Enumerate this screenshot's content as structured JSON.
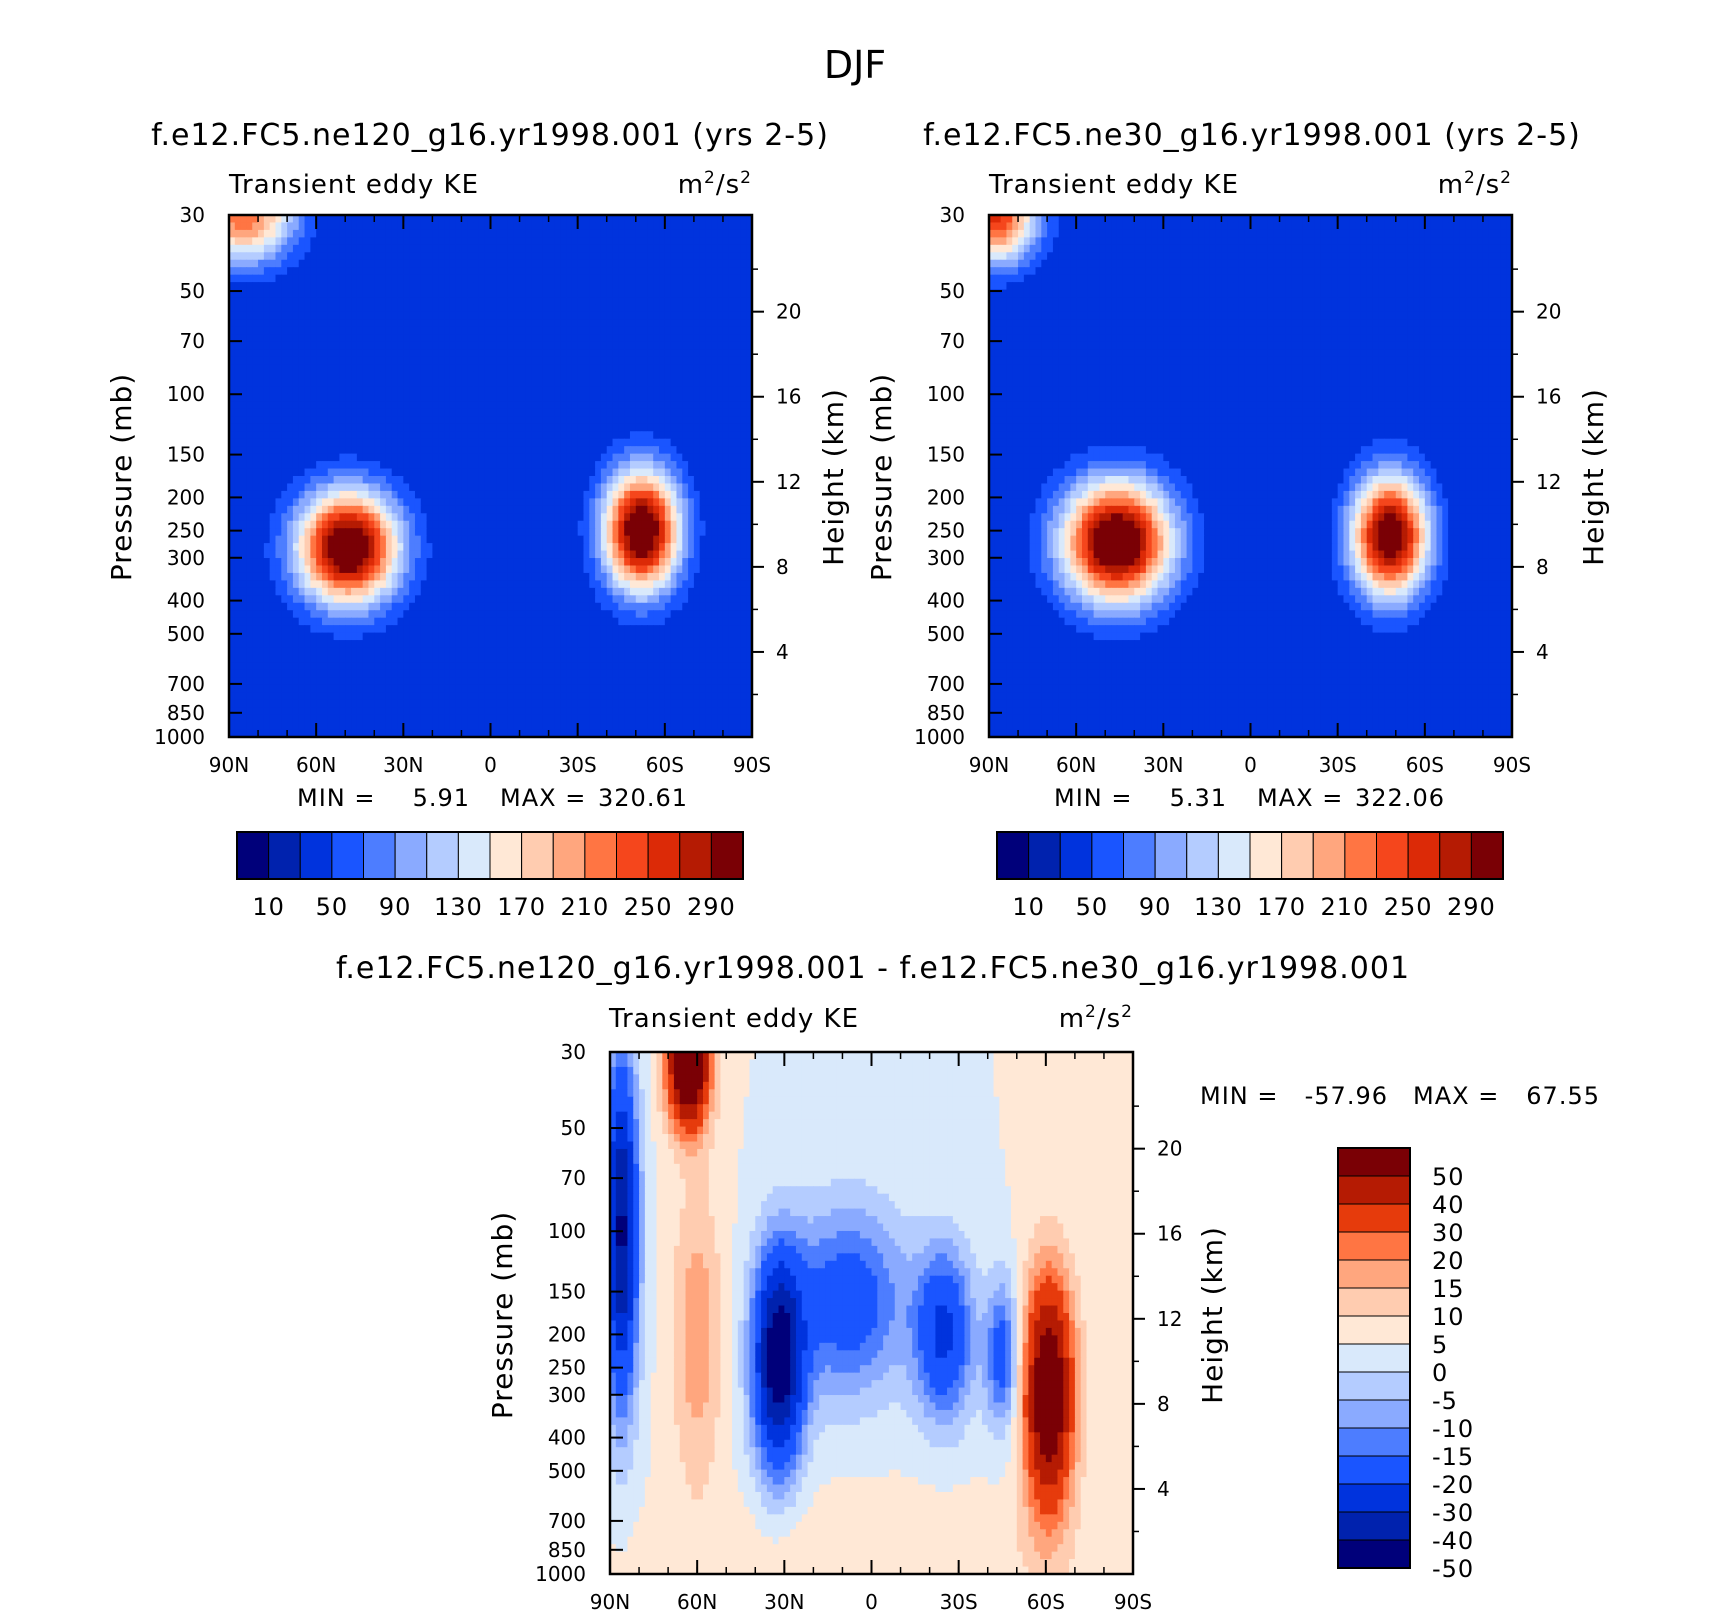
{
  "figure_title": "DJF",
  "colors": {
    "abs_scale": [
      "#00007a",
      "#0022ae",
      "#0033dd",
      "#1a55ff",
      "#4d7dff",
      "#8aaaff",
      "#b4ccff",
      "#d9e9fb",
      "#ffe8d6",
      "#ffccb0",
      "#ffa67e",
      "#ff7543",
      "#f5461c",
      "#dc2a07",
      "#b51b03",
      "#7a0005"
    ],
    "diff_scale": [
      "#00007a",
      "#0022ae",
      "#0033dd",
      "#1a55ff",
      "#4d7dff",
      "#8aaaff",
      "#b4ccff",
      "#d9e9fb",
      "#ffe8d6",
      "#ffccb0",
      "#ffa67e",
      "#ff7543",
      "#e63b0c",
      "#b51b03",
      "#7a0005"
    ]
  },
  "chart_data": [
    {
      "type": "heatmap",
      "title": "f.e12.FC5.ne120_g16.yr1998.001 (yrs 2-5)",
      "left_label": "Transient eddy KE",
      "units_base": "m",
      "units_mid": "/s",
      "units_exp": "2",
      "ylabel": "Pressure (mb)",
      "ylabel2": "Height (km)",
      "x_ticks": [
        "90N",
        "60N",
        "30N",
        "0",
        "30S",
        "60S",
        "90S"
      ],
      "y_ticks": [
        "30",
        "50",
        "70",
        "100",
        "150",
        "200",
        "250",
        "300",
        "400",
        "500",
        "700",
        "850",
        "1000"
      ],
      "y2_ticks": [
        "20",
        "16",
        "12",
        "8",
        "4"
      ],
      "min_label": "MIN =",
      "min_value": "5.91",
      "max_label": "MAX =",
      "max_value": "320.61",
      "colorbar_labels": [
        "10",
        "50",
        "90",
        "130",
        "170",
        "210",
        "250",
        "290"
      ],
      "levels": [
        10,
        30,
        50,
        70,
        90,
        110,
        130,
        150,
        170,
        190,
        210,
        230,
        250,
        270,
        290
      ],
      "features": [
        {
          "lat": 49,
          "p": 280,
          "amp": 310,
          "slat": 12,
          "sz": 0.26
        },
        {
          "lat": -52,
          "p": 250,
          "amp": 310,
          "slat": 9,
          "sz": 0.28
        },
        {
          "lat": 85,
          "p": 30,
          "amp": 200,
          "slat": 12,
          "sz": 0.22
        }
      ]
    },
    {
      "type": "heatmap",
      "title": "f.e12.FC5.ne30_g16.yr1998.001 (yrs 2-5)",
      "left_label": "Transient eddy KE",
      "units_base": "m",
      "units_mid": "/s",
      "units_exp": "2",
      "ylabel": "Pressure (mb)",
      "ylabel2": "Height (km)",
      "x_ticks": [
        "90N",
        "60N",
        "30N",
        "0",
        "30S",
        "60S",
        "90S"
      ],
      "y_ticks": [
        "30",
        "50",
        "70",
        "100",
        "150",
        "200",
        "250",
        "300",
        "400",
        "500",
        "700",
        "850",
        "1000"
      ],
      "y2_ticks": [
        "20",
        "16",
        "12",
        "8",
        "4"
      ],
      "min_label": "MIN =",
      "min_value": "5.31",
      "max_label": "MAX =",
      "max_value": "322.06",
      "colorbar_labels": [
        "10",
        "50",
        "90",
        "130",
        "170",
        "210",
        "250",
        "290"
      ],
      "levels": [
        10,
        30,
        50,
        70,
        90,
        110,
        130,
        150,
        170,
        190,
        210,
        230,
        250,
        270,
        290
      ],
      "features": [
        {
          "lat": 46,
          "p": 270,
          "amp": 315,
          "slat": 13,
          "sz": 0.28
        },
        {
          "lat": -48,
          "p": 260,
          "amp": 300,
          "slat": 9,
          "sz": 0.28
        },
        {
          "lat": 88,
          "p": 30,
          "amp": 230,
          "slat": 10,
          "sz": 0.22
        }
      ]
    },
    {
      "type": "heatmap",
      "title": "f.e12.FC5.ne120_g16.yr1998.001 - f.e12.FC5.ne30_g16.yr1998.001",
      "left_label": "Transient eddy KE",
      "units_base": "m",
      "units_mid": "/s",
      "units_exp": "2",
      "ylabel": "Pressure (mb)",
      "ylabel2": "Height (km)",
      "x_ticks": [
        "90N",
        "60N",
        "30N",
        "0",
        "30S",
        "60S",
        "90S"
      ],
      "y_ticks": [
        "30",
        "50",
        "70",
        "100",
        "150",
        "200",
        "250",
        "300",
        "400",
        "500",
        "700",
        "850",
        "1000"
      ],
      "y2_ticks": [
        "20",
        "16",
        "12",
        "8",
        "4"
      ],
      "min_label": "MIN =",
      "min_value": "-57.96",
      "max_label": "MAX =",
      "max_value": "67.55",
      "colorbar_labels": [
        "50",
        "40",
        "30",
        "20",
        "15",
        "10",
        "5",
        "0",
        "-5",
        "-10",
        "-15",
        "-20",
        "-30",
        "-40",
        "-50"
      ],
      "levels": [
        -50,
        -40,
        -30,
        -20,
        -15,
        -10,
        -5,
        0,
        5,
        10,
        15,
        20,
        30,
        40,
        50
      ],
      "features": [
        {
          "lat": 63,
          "p": 32,
          "amp": 65,
          "slat": 5,
          "sz": 0.3
        },
        {
          "lat": 60,
          "p": 200,
          "amp": 14,
          "slat": 6,
          "sz": 0.7
        },
        {
          "lat": 32,
          "p": 240,
          "amp": -58,
          "slat": 6,
          "sz": 0.5
        },
        {
          "lat": 8,
          "p": 160,
          "amp": -26,
          "slat": 14,
          "sz": 0.45
        },
        {
          "lat": -25,
          "p": 200,
          "amp": -32,
          "slat": 7,
          "sz": 0.4
        },
        {
          "lat": -45,
          "p": 230,
          "amp": -25,
          "slat": 4,
          "sz": 0.35
        },
        {
          "lat": -61,
          "p": 300,
          "amp": 55,
          "slat": 6,
          "sz": 0.55
        },
        {
          "lat": 86,
          "p": 100,
          "amp": -52,
          "slat": 4,
          "sz": 0.8
        },
        {
          "lat": 0,
          "p": 900,
          "amp": 4,
          "slat": 60,
          "sz": 0.3
        }
      ]
    }
  ]
}
